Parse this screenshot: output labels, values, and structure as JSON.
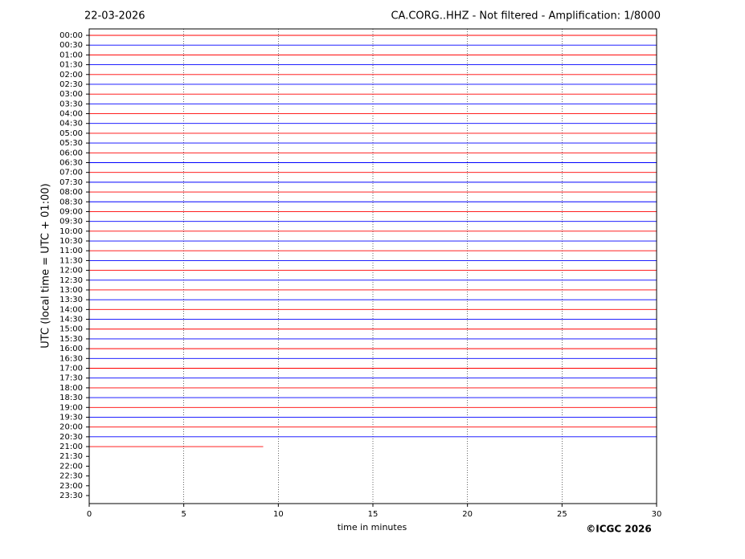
{
  "chart_data": {
    "type": "helicorder",
    "date": "22-03-2026",
    "title": "CA.CORG..HHZ - Not filtered - Amplification: 1/8000",
    "ylabel": "UTC (local time = UTC + 01:00)",
    "xlabel": "time in minutes",
    "credit": "©ICGC 2026",
    "categories": [
      "00:00",
      "00:30",
      "01:00",
      "01:30",
      "02:00",
      "02:30",
      "03:00",
      "03:30",
      "04:00",
      "04:30",
      "05:00",
      "05:30",
      "06:00",
      "06:30",
      "07:00",
      "07:30",
      "08:00",
      "08:30",
      "09:00",
      "09:30",
      "10:00",
      "10:30",
      "11:00",
      "11:30",
      "12:00",
      "12:30",
      "13:00",
      "13:30",
      "14:00",
      "14:30",
      "15:00",
      "15:30",
      "16:00",
      "16:30",
      "17:00",
      "17:30",
      "18:00",
      "18:30",
      "19:00",
      "19:30",
      "20:00",
      "20:30",
      "21:00",
      "21:30",
      "22:00",
      "22:30",
      "23:00",
      "23:30"
    ],
    "colors": [
      "#ff0000",
      "#0000ff"
    ],
    "trace_ends": [
      30,
      30,
      30,
      30,
      30,
      30,
      30,
      30,
      30,
      30,
      30,
      30,
      30,
      30,
      30,
      30,
      30,
      30,
      30,
      30,
      30,
      30,
      30,
      30,
      30,
      30,
      30,
      30,
      30,
      30,
      30,
      30,
      30,
      30,
      30,
      30,
      30,
      30,
      30,
      30,
      30,
      30,
      9.2
    ],
    "xlim": [
      0,
      30
    ],
    "xticks": [
      0,
      5,
      10,
      15,
      20,
      25,
      30
    ],
    "grid": true
  }
}
